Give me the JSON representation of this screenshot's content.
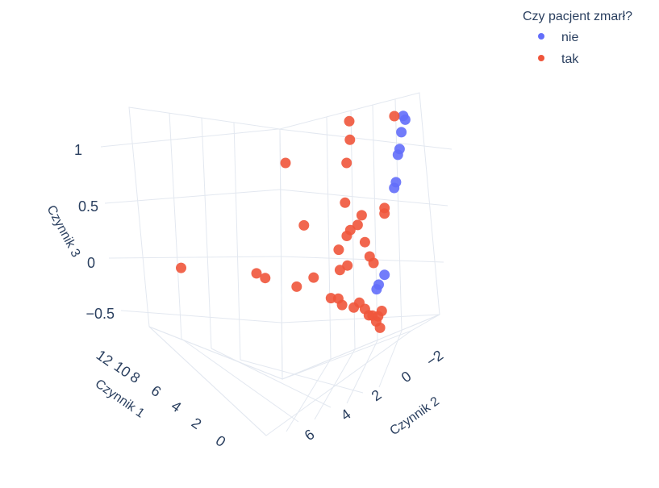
{
  "chart_data": {
    "type": "scatter",
    "xlabel": "Czynnik 1",
    "ylabel": "Czynnik 2",
    "zlabel": "Czynnik 3",
    "x_ticks": [
      "12",
      "10",
      "8",
      "6",
      "4",
      "2",
      "0"
    ],
    "y_ticks": [
      "6",
      "4",
      "2",
      "0",
      "−2"
    ],
    "z_ticks": [
      "1",
      "0.5",
      "0",
      "−0.5"
    ],
    "legend": {
      "title": "Czy pacjent zmarł?",
      "placement": "top-right"
    },
    "series": [
      {
        "name": "nie",
        "color": "#636efa",
        "points": [
          {
            "x": 0.2,
            "y": -2.2,
            "z": 1.25
          },
          {
            "x": 0.1,
            "y": -2.3,
            "z": 1.22
          },
          {
            "x": 0.3,
            "y": -2.1,
            "z": 1.1
          },
          {
            "x": 0.4,
            "y": -2.1,
            "z": 0.95
          },
          {
            "x": 0.5,
            "y": -2.1,
            "z": 0.9
          },
          {
            "x": 0.6,
            "y": -2.0,
            "z": 0.65
          },
          {
            "x": 0.7,
            "y": -2.0,
            "z": 0.6
          },
          {
            "x": 1.2,
            "y": -1.5,
            "z": -0.2
          },
          {
            "x": 1.5,
            "y": -1.2,
            "z": -0.3
          },
          {
            "x": 1.6,
            "y": -1.0,
            "z": -0.35
          }
        ]
      },
      {
        "name": "tak",
        "color": "#ef553b",
        "points": [
          {
            "x": 0.6,
            "y": -1.2,
            "z": 1.2
          },
          {
            "x": 3.0,
            "y": 0.5,
            "z": 1.1
          },
          {
            "x": 3.0,
            "y": 0.2,
            "z": 0.95
          },
          {
            "x": 3.2,
            "y": 0.1,
            "z": 0.75
          },
          {
            "x": 6.5,
            "y": 2.0,
            "z": 0.7
          },
          {
            "x": 1.2,
            "y": -1.5,
            "z": 0.4
          },
          {
            "x": 1.2,
            "y": -1.5,
            "z": 0.35
          },
          {
            "x": 3.3,
            "y": 0.0,
            "z": 0.4
          },
          {
            "x": 2.4,
            "y": -0.5,
            "z": 0.3
          },
          {
            "x": 2.6,
            "y": -0.2,
            "z": 0.2
          },
          {
            "x": 3.0,
            "y": 0.0,
            "z": 0.15
          },
          {
            "x": 5.5,
            "y": 1.5,
            "z": 0.15
          },
          {
            "x": 3.2,
            "y": 0.0,
            "z": 0.1
          },
          {
            "x": 2.2,
            "y": -0.4,
            "z": 0.05
          },
          {
            "x": 3.6,
            "y": 0.6,
            "z": -0.05
          },
          {
            "x": 2.0,
            "y": -1.0,
            "z": -0.05
          },
          {
            "x": 3.6,
            "y": 0.0,
            "z": -0.2
          },
          {
            "x": 1.8,
            "y": -1.2,
            "z": -0.1
          },
          {
            "x": 3.2,
            "y": -0.3,
            "z": -0.15
          },
          {
            "x": 5.0,
            "y": 1.0,
            "z": -0.3
          },
          {
            "x": 12.0,
            "y": 6.5,
            "z": -0.4
          },
          {
            "x": 8.0,
            "y": 3.5,
            "z": -0.35
          },
          {
            "x": 7.5,
            "y": 3.5,
            "z": -0.4
          },
          {
            "x": 5.8,
            "y": 2.5,
            "z": -0.45
          },
          {
            "x": 4.0,
            "y": 1.0,
            "z": -0.5
          },
          {
            "x": 3.6,
            "y": 0.8,
            "z": -0.5
          },
          {
            "x": 3.4,
            "y": 0.6,
            "z": -0.55
          },
          {
            "x": 2.8,
            "y": 0.0,
            "z": -0.55
          },
          {
            "x": 2.5,
            "y": -0.2,
            "z": -0.5
          },
          {
            "x": 2.2,
            "y": -0.4,
            "z": -0.55
          },
          {
            "x": 2.0,
            "y": -0.6,
            "z": -0.6
          },
          {
            "x": 1.8,
            "y": -0.7,
            "z": -0.6
          },
          {
            "x": 1.6,
            "y": -0.8,
            "z": -0.65
          },
          {
            "x": 1.5,
            "y": -0.9,
            "z": -0.6
          },
          {
            "x": 1.4,
            "y": -1.0,
            "z": -0.7
          },
          {
            "x": 1.3,
            "y": -1.0,
            "z": -0.55
          }
        ]
      }
    ]
  }
}
